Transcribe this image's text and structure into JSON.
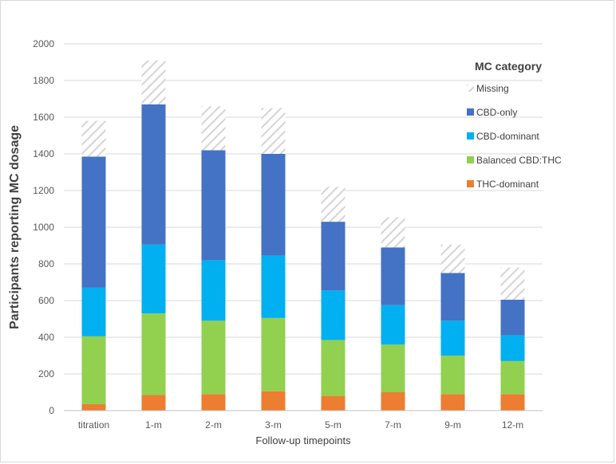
{
  "chart_data": {
    "type": "bar",
    "stacked": true,
    "title": "",
    "xlabel": "Follow-up timepoints",
    "ylabel": "Participants reporting MC dosage",
    "ylim": [
      0,
      2000
    ],
    "yticks": [
      0,
      200,
      400,
      600,
      800,
      1000,
      1200,
      1400,
      1600,
      1800,
      2000
    ],
    "yticks_text": [
      "0",
      "200",
      "400",
      "600",
      "800",
      "1000",
      "1200",
      "1400",
      "1600",
      "1800",
      "2000"
    ],
    "grid": true,
    "categories": [
      "titration",
      "1-m",
      "2-m",
      "3-m",
      "5-m",
      "7-m",
      "9-m",
      "12-m"
    ],
    "legend_title": "MC category",
    "legend_position": "right",
    "series": [
      {
        "name": "THC-dominant",
        "color": "#ed7d31",
        "values": [
          35,
          85,
          90,
          105,
          80,
          100,
          90,
          90
        ]
      },
      {
        "name": "Balanced CBD:THC",
        "color": "#92d050",
        "values": [
          370,
          445,
          400,
          400,
          305,
          260,
          210,
          180
        ]
      },
      {
        "name": "CBD-dominant",
        "color": "#00b0f0",
        "values": [
          265,
          375,
          330,
          340,
          270,
          215,
          190,
          140
        ]
      },
      {
        "name": "CBD-only",
        "color": "#4472c4",
        "values": [
          715,
          765,
          600,
          555,
          375,
          315,
          260,
          195
        ]
      },
      {
        "name": "Missing",
        "color": "#d9d9d9",
        "pattern": "hatched",
        "values": [
          195,
          240,
          240,
          250,
          190,
          165,
          155,
          175
        ]
      }
    ]
  }
}
